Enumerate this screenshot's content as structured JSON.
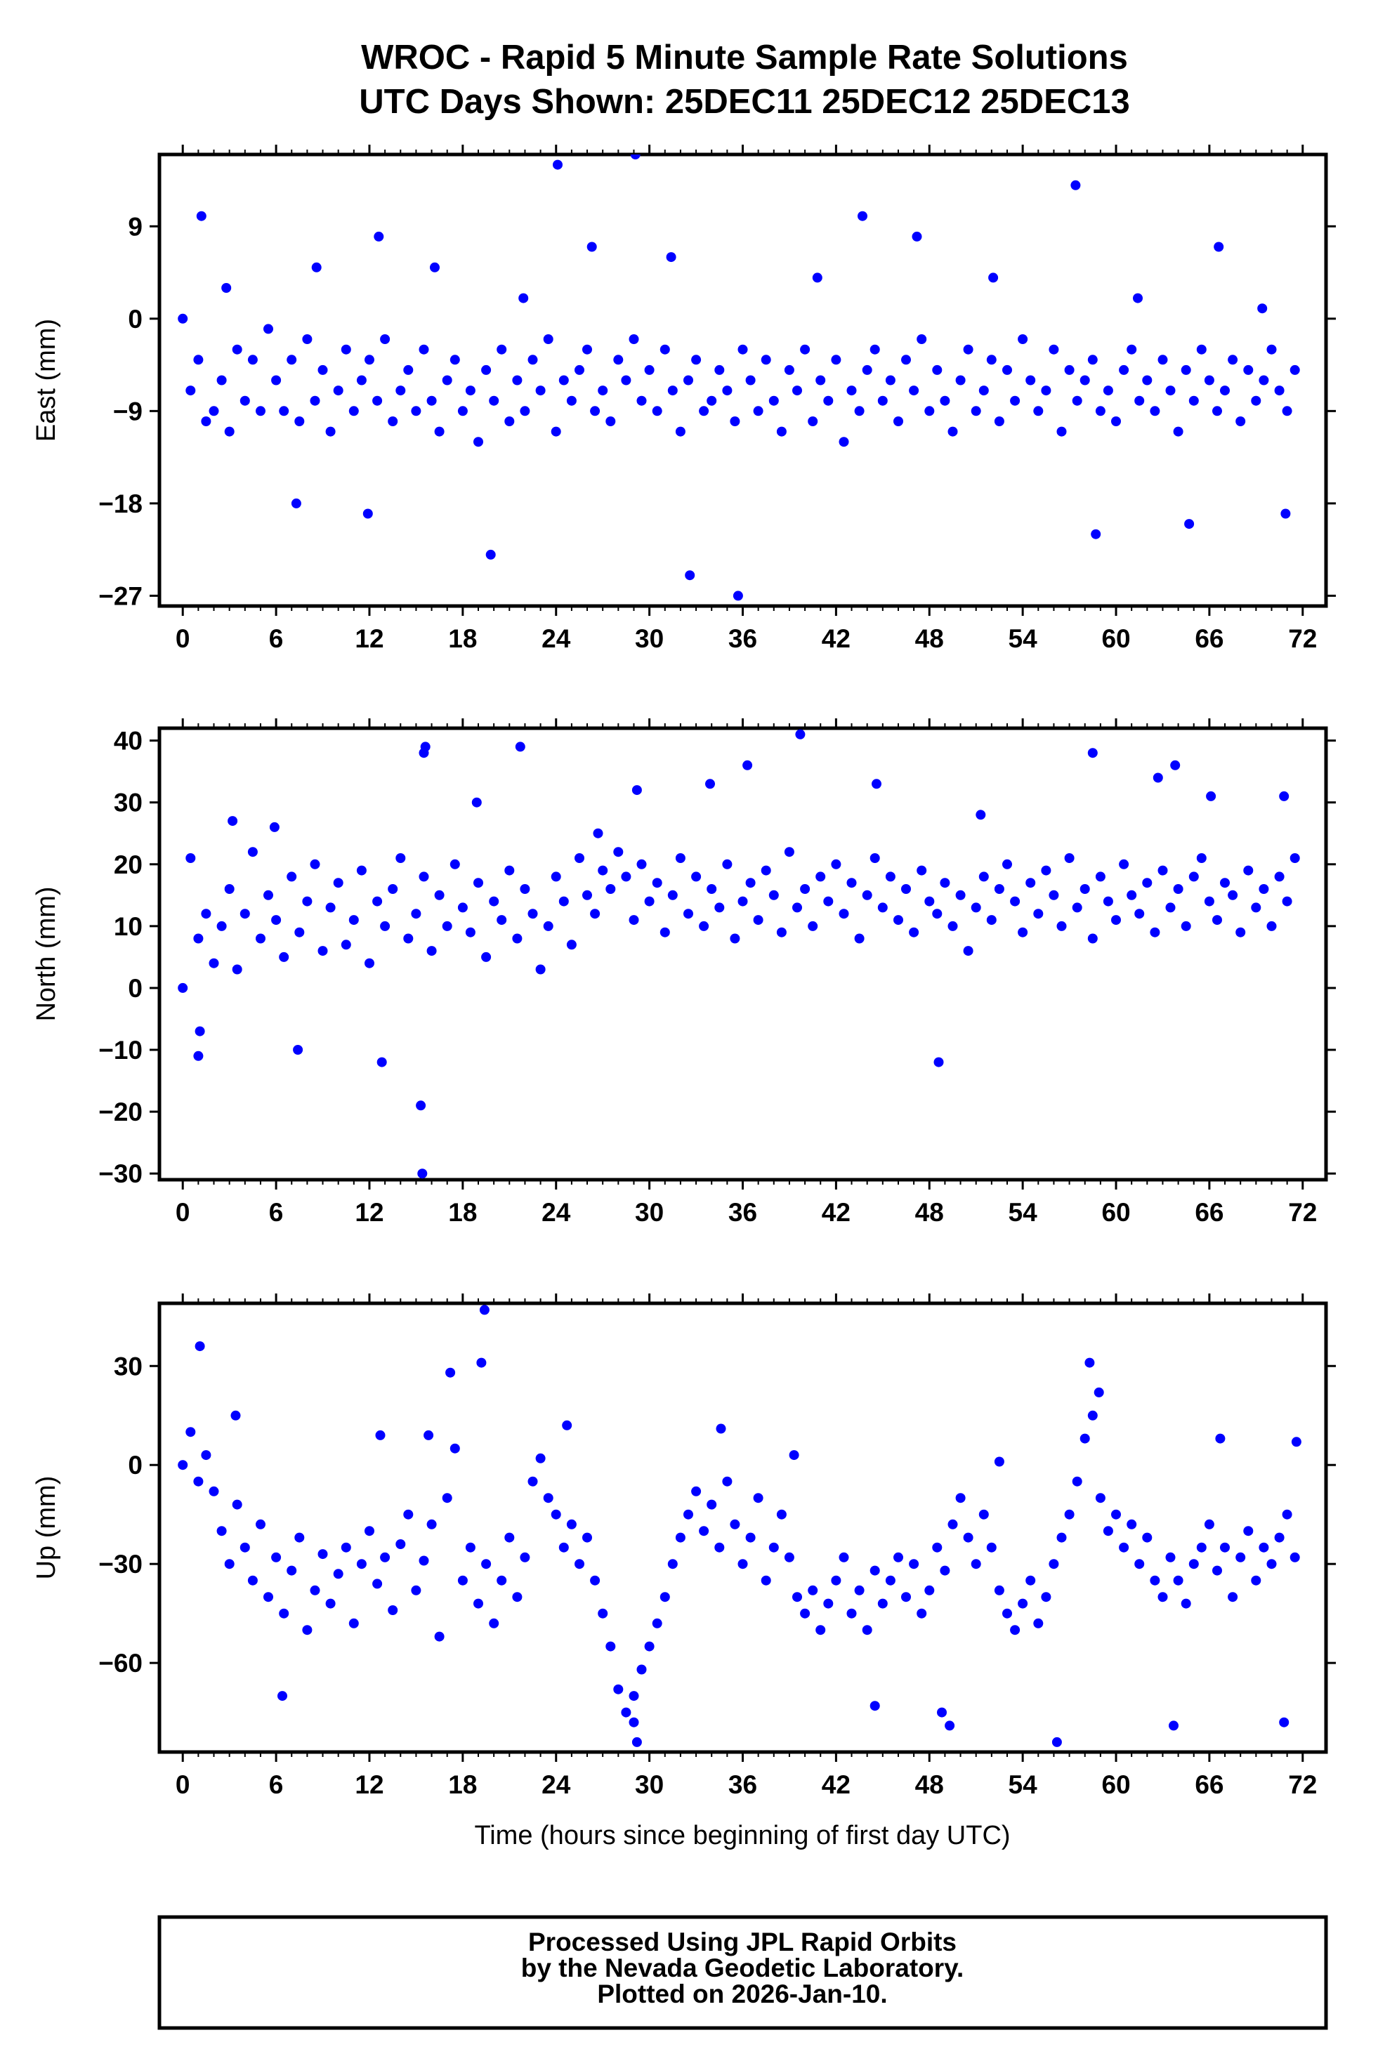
{
  "title_line1": "WROC - Rapid 5 Minute Sample Rate Solutions",
  "title_line2": "UTC Days Shown:  25DEC11 25DEC12 25DEC13",
  "xlabel": "Time (hours since beginning of first day UTC)",
  "footer": [
    "Processed Using JPL Rapid Orbits",
    "by the Nevada Geodetic Laboratory.",
    "Plotted on 2026-Jan-10."
  ],
  "marker_color": "#0000ff",
  "chart_data": [
    {
      "type": "scatter",
      "ylabel": "East (mm)",
      "xlim": [
        -1.5,
        73.5
      ],
      "ylim": [
        -28,
        16
      ],
      "xticks": [
        0,
        6,
        12,
        18,
        24,
        30,
        36,
        42,
        48,
        54,
        60,
        66,
        72
      ],
      "yticks": [
        -27,
        -18,
        -9,
        0,
        9
      ],
      "ytick_labels": [
        "−27",
        "−18",
        "−9",
        "0",
        "9"
      ],
      "grid": false,
      "series": [
        {
          "x": [
            0,
            0.5,
            1,
            1.5,
            2,
            2.5,
            3,
            3.5,
            4,
            4.5,
            5,
            5.5,
            6,
            6.5,
            7,
            7.5,
            8,
            8.5,
            9,
            9.5,
            10,
            10.5,
            11,
            11.5,
            12,
            12.5,
            13,
            13.5,
            14,
            14.5,
            15,
            15.5,
            16,
            16.5,
            17,
            17.5,
            18,
            18.5,
            19,
            19.5,
            20,
            20.5,
            21,
            21.5,
            22,
            22.5,
            23,
            23.5,
            24,
            24.5,
            25,
            25.5,
            26,
            26.5,
            27,
            27.5,
            28,
            28.5,
            29,
            29.5,
            30,
            30.5,
            31,
            31.5,
            32,
            32.5,
            33,
            33.5,
            34,
            34.5,
            35,
            35.5,
            36,
            36.5,
            37,
            37.5,
            38,
            38.5,
            39,
            39.5,
            40,
            40.5,
            41,
            41.5,
            42,
            42.5,
            43,
            43.5,
            44,
            44.5,
            45,
            45.5,
            46,
            46.5,
            47,
            47.5,
            48,
            48.5,
            49,
            49.5,
            50,
            50.5,
            51,
            51.5,
            52,
            52.5,
            53,
            53.5,
            54,
            54.5,
            55,
            55.5,
            56,
            56.5,
            57,
            57.5,
            58,
            58.5,
            59,
            59.5,
            60,
            60.5,
            61,
            61.5,
            62,
            62.5,
            63,
            63.5,
            64,
            64.5,
            65,
            65.5,
            66,
            66.5,
            67,
            67.5,
            68,
            68.5,
            69,
            69.5,
            70,
            70.5,
            71,
            71.5,
            1.2,
            7.3,
            11.9,
            19.8,
            24.1,
            29.1,
            32.6,
            35.7,
            43.7,
            57.4,
            58.7,
            64.7,
            70.9,
            2.8,
            8.6,
            12.6,
            16.2,
            21.9,
            26.3,
            31.4,
            40.8,
            47.2,
            52.1,
            61.4,
            66.6,
            69.4
          ],
          "y": [
            0,
            -7,
            -4,
            -10,
            -9,
            -6,
            -11,
            -3,
            -8,
            -4,
            -9,
            -1,
            -6,
            -9,
            -4,
            -10,
            -2,
            -8,
            -5,
            -11,
            -7,
            -3,
            -9,
            -6,
            -4,
            -8,
            -2,
            -10,
            -7,
            -5,
            -9,
            -3,
            -8,
            -11,
            -6,
            -4,
            -9,
            -7,
            -12,
            -5,
            -8,
            -3,
            -10,
            -6,
            -9,
            -4,
            -7,
            -2,
            -11,
            -6,
            -8,
            -5,
            -3,
            -9,
            -7,
            -10,
            -4,
            -6,
            -2,
            -8,
            -5,
            -9,
            -3,
            -7,
            -11,
            -6,
            -4,
            -9,
            -8,
            -5,
            -7,
            -10,
            -3,
            -6,
            -9,
            -4,
            -8,
            -11,
            -5,
            -7,
            -3,
            -10,
            -6,
            -8,
            -4,
            -12,
            -7,
            -9,
            -5,
            -3,
            -8,
            -6,
            -10,
            -4,
            -7,
            -2,
            -9,
            -5,
            -8,
            -11,
            -6,
            -3,
            -9,
            -7,
            -4,
            -10,
            -5,
            -8,
            -2,
            -6,
            -9,
            -7,
            -3,
            -11,
            -5,
            -8,
            -6,
            -4,
            -9,
            -7,
            -10,
            -5,
            -3,
            -8,
            -6,
            -9,
            -4,
            -7,
            -11,
            -5,
            -8,
            -3,
            -6,
            -9,
            -7,
            -4,
            -10,
            -5,
            -8,
            -6,
            -3,
            -7,
            -9,
            -5,
            10,
            -18,
            -19,
            -23,
            15,
            16,
            -25,
            -27,
            10,
            13,
            -21,
            -20,
            -19,
            3,
            5,
            8,
            5,
            2,
            7,
            6,
            4,
            8,
            4,
            2,
            7,
            1
          ]
        }
      ]
    },
    {
      "type": "scatter",
      "ylabel": "North (mm)",
      "xlim": [
        -1.5,
        73.5
      ],
      "ylim": [
        -31,
        42
      ],
      "xticks": [
        0,
        6,
        12,
        18,
        24,
        30,
        36,
        42,
        48,
        54,
        60,
        66,
        72
      ],
      "yticks": [
        -30,
        -20,
        -10,
        0,
        10,
        20,
        30,
        40
      ],
      "ytick_labels": [
        "−30",
        "−20",
        "−10",
        "0",
        "10",
        "20",
        "30",
        "40"
      ],
      "grid": false,
      "series": [
        {
          "x": [
            0,
            0.5,
            1,
            1.5,
            2,
            2.5,
            3,
            3.5,
            4,
            4.5,
            5,
            5.5,
            6,
            6.5,
            7,
            7.5,
            8,
            8.5,
            9,
            9.5,
            10,
            10.5,
            11,
            11.5,
            12,
            12.5,
            13,
            13.5,
            14,
            14.5,
            15,
            15.5,
            16,
            16.5,
            17,
            17.5,
            18,
            18.5,
            19,
            19.5,
            20,
            20.5,
            21,
            21.5,
            22,
            22.5,
            23,
            23.5,
            24,
            24.5,
            25,
            25.5,
            26,
            26.5,
            27,
            27.5,
            28,
            28.5,
            29,
            29.5,
            30,
            30.5,
            31,
            31.5,
            32,
            32.5,
            33,
            33.5,
            34,
            34.5,
            35,
            35.5,
            36,
            36.5,
            37,
            37.5,
            38,
            38.5,
            39,
            39.5,
            40,
            40.5,
            41,
            41.5,
            42,
            42.5,
            43,
            43.5,
            44,
            44.5,
            45,
            45.5,
            46,
            46.5,
            47,
            47.5,
            48,
            48.5,
            49,
            49.5,
            50,
            50.5,
            51,
            51.5,
            52,
            52.5,
            53,
            53.5,
            54,
            54.5,
            55,
            55.5,
            56,
            56.5,
            57,
            57.5,
            58,
            58.5,
            59,
            59.5,
            60,
            60.5,
            61,
            61.5,
            62,
            62.5,
            63,
            63.5,
            64,
            64.5,
            65,
            65.5,
            66,
            66.5,
            67,
            67.5,
            68,
            68.5,
            69,
            69.5,
            70,
            70.5,
            71,
            71.5,
            1.0,
            1.1,
            7.4,
            12.8,
            15.3,
            15.4,
            15.5,
            15.6,
            21.7,
            29.2,
            36.3,
            39.7,
            48.6,
            58.5,
            62.7,
            63.8,
            3.2,
            5.9,
            18.9,
            26.7,
            33.9,
            44.6,
            51.3,
            66.1,
            70.8
          ],
          "y": [
            0,
            21,
            8,
            12,
            4,
            10,
            16,
            3,
            12,
            22,
            8,
            15,
            11,
            5,
            18,
            9,
            14,
            20,
            6,
            13,
            17,
            7,
            11,
            19,
            4,
            14,
            10,
            16,
            21,
            8,
            12,
            18,
            6,
            15,
            10,
            20,
            13,
            9,
            17,
            5,
            14,
            11,
            19,
            8,
            16,
            12,
            3,
            10,
            18,
            14,
            7,
            21,
            15,
            12,
            19,
            16,
            22,
            18,
            11,
            20,
            14,
            17,
            9,
            15,
            21,
            12,
            18,
            10,
            16,
            13,
            20,
            8,
            14,
            17,
            11,
            19,
            15,
            9,
            22,
            13,
            16,
            10,
            18,
            14,
            20,
            12,
            17,
            8,
            15,
            21,
            13,
            18,
            11,
            16,
            9,
            19,
            14,
            12,
            17,
            10,
            15,
            6,
            13,
            18,
            11,
            16,
            20,
            14,
            9,
            17,
            12,
            19,
            15,
            10,
            21,
            13,
            16,
            8,
            18,
            14,
            11,
            20,
            15,
            12,
            17,
            9,
            19,
            13,
            16,
            10,
            18,
            21,
            14,
            11,
            17,
            15,
            9,
            19,
            13,
            16,
            10,
            18,
            14,
            21,
            -11,
            -7,
            -10,
            -12,
            -19,
            -30,
            38,
            39,
            39,
            32,
            36,
            41,
            -12,
            38,
            34,
            36,
            27,
            26,
            30,
            25,
            33,
            33,
            28,
            31,
            31
          ]
        }
      ]
    },
    {
      "type": "scatter",
      "ylabel": "Up (mm)",
      "xlabel": "Time (hours since beginning of first day UTC)",
      "xlim": [
        -1.5,
        73.5
      ],
      "ylim": [
        -87,
        49
      ],
      "xticks": [
        0,
        6,
        12,
        18,
        24,
        30,
        36,
        42,
        48,
        54,
        60,
        66,
        72
      ],
      "yticks": [
        -60,
        -30,
        0,
        30
      ],
      "ytick_labels": [
        "−60",
        "−30",
        "0",
        "30"
      ],
      "grid": false,
      "series": [
        {
          "x": [
            0,
            0.5,
            1,
            1.5,
            2,
            2.5,
            3,
            3.5,
            4,
            4.5,
            5,
            5.5,
            6,
            6.5,
            7,
            7.5,
            8,
            8.5,
            9,
            9.5,
            10,
            10.5,
            11,
            11.5,
            12,
            12.5,
            13,
            13.5,
            14,
            14.5,
            15,
            15.5,
            16,
            16.5,
            17,
            17.5,
            18,
            18.5,
            19,
            19.5,
            20,
            20.5,
            21,
            21.5,
            22,
            22.5,
            23,
            23.5,
            24,
            24.5,
            25,
            25.5,
            26,
            26.5,
            27,
            27.5,
            28,
            28.5,
            29,
            29.5,
            30,
            30.5,
            31,
            31.5,
            32,
            32.5,
            33,
            33.5,
            34,
            34.5,
            35,
            35.5,
            36,
            36.5,
            37,
            37.5,
            38,
            38.5,
            39,
            39.5,
            40,
            40.5,
            41,
            41.5,
            42,
            42.5,
            43,
            43.5,
            44,
            44.5,
            45,
            45.5,
            46,
            46.5,
            47,
            47.5,
            48,
            48.5,
            49,
            49.5,
            50,
            50.5,
            51,
            51.5,
            52,
            52.5,
            53,
            53.5,
            54,
            54.5,
            55,
            55.5,
            56,
            56.5,
            57,
            57.5,
            58,
            58.5,
            59,
            59.5,
            60,
            60.5,
            61,
            61.5,
            62,
            62.5,
            63,
            63.5,
            64,
            64.5,
            65,
            65.5,
            66,
            66.5,
            67,
            67.5,
            68,
            68.5,
            69,
            69.5,
            70,
            70.5,
            71,
            71.5,
            1.1,
            6.4,
            15.8,
            19.2,
            19.4,
            29.0,
            29.2,
            44.5,
            48.8,
            49.3,
            56.2,
            58.3,
            63.7,
            70.8,
            3.4,
            12.7,
            17.2,
            24.7,
            34.6,
            39.3,
            52.5,
            58.9,
            66.7,
            71.6
          ],
          "y": [
            0,
            10,
            -5,
            3,
            -8,
            -20,
            -30,
            -12,
            -25,
            -35,
            -18,
            -40,
            -28,
            -45,
            -32,
            -22,
            -50,
            -38,
            -27,
            -42,
            -33,
            -25,
            -48,
            -30,
            -20,
            -36,
            -28,
            -44,
            -24,
            -15,
            -38,
            -29,
            -18,
            -52,
            -10,
            5,
            -35,
            -25,
            -42,
            -30,
            -48,
            -35,
            -22,
            -40,
            -28,
            -5,
            2,
            -10,
            -15,
            -25,
            -18,
            -30,
            -22,
            -35,
            -45,
            -55,
            -68,
            -75,
            -70,
            -62,
            -55,
            -48,
            -40,
            -30,
            -22,
            -15,
            -8,
            -20,
            -12,
            -25,
            -5,
            -18,
            -30,
            -22,
            -10,
            -35,
            -25,
            -15,
            -28,
            -40,
            -45,
            -38,
            -50,
            -42,
            -35,
            -28,
            -45,
            -38,
            -50,
            -32,
            -42,
            -35,
            -28,
            -40,
            -30,
            -45,
            -38,
            -25,
            -32,
            -18,
            -10,
            -22,
            -30,
            -15,
            -25,
            -38,
            -45,
            -50,
            -42,
            -35,
            -48,
            -40,
            -30,
            -22,
            -15,
            -5,
            8,
            15,
            -10,
            -20,
            -15,
            -25,
            -18,
            -30,
            -22,
            -35,
            -40,
            -28,
            -35,
            -42,
            -30,
            -25,
            -18,
            -32,
            -25,
            -40,
            -28,
            -20,
            -35,
            -25,
            -30,
            -22,
            -15,
            -28,
            36,
            -70,
            9,
            31,
            47,
            -78,
            -84,
            -73,
            -75,
            -79,
            -84,
            31,
            -79,
            -78,
            15,
            9,
            28,
            12,
            11,
            3,
            1,
            22,
            8,
            7
          ]
        }
      ]
    }
  ]
}
